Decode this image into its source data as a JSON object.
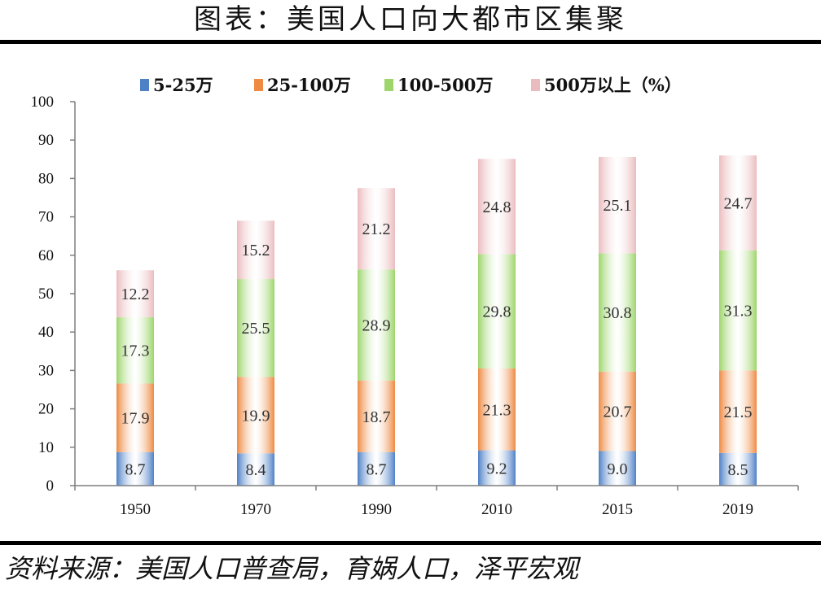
{
  "title": "图表：美国人口向大都市区集聚",
  "source": "资料来源：美国人口普查局，育娲人口，泽平宏观",
  "chart_data": {
    "type": "bar",
    "stacked": true,
    "categories": [
      "1950",
      "1970",
      "1990",
      "2010",
      "2015",
      "2019"
    ],
    "series": [
      {
        "name": "5-25万",
        "color": "#4f81c7",
        "values": [
          8.7,
          8.4,
          8.7,
          9.2,
          9.0,
          8.5
        ]
      },
      {
        "name": "25-100万",
        "color": "#ee8a43",
        "values": [
          17.9,
          19.9,
          18.7,
          21.3,
          20.7,
          21.5
        ]
      },
      {
        "name": "100-500万",
        "color": "#9dd56b",
        "values": [
          17.3,
          25.5,
          28.9,
          29.8,
          30.8,
          31.3
        ]
      },
      {
        "name": "500万以上（%）",
        "color": "#ebbcbf",
        "values": [
          12.2,
          15.2,
          21.2,
          24.8,
          25.1,
          24.7
        ]
      }
    ],
    "ylim": [
      0,
      100
    ],
    "yticks": [
      0,
      10,
      20,
      30,
      40,
      50,
      60,
      70,
      80,
      90,
      100
    ],
    "grid": false,
    "legend_position": "top"
  }
}
